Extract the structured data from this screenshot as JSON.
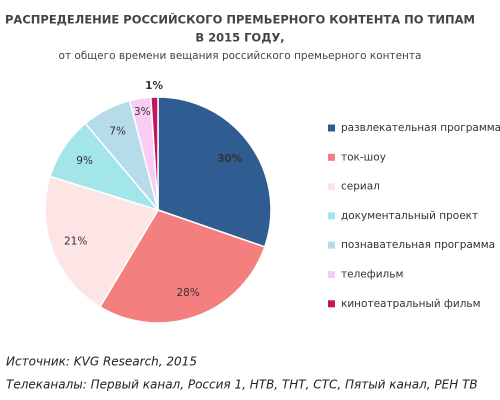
{
  "chart_data": {
    "type": "pie",
    "title": [
      "РАСПРЕДЕЛЕНИЕ РОССИЙСКОГО ПРЕМЬЕРНОГО КОНТЕНТА ПО ТИПАМ",
      "В 2015 ГОДУ,"
    ],
    "subtitle": "от общего времени вещания российского премьерного контента",
    "categories": [
      "развлекательная программа",
      "ток-шоу",
      "сериал",
      "документальный проект",
      "познавательная программа",
      "телефильм",
      "кинотеатральный фильм"
    ],
    "values": [
      30,
      28,
      21,
      9,
      7,
      3,
      1
    ],
    "value_labels": [
      "30%",
      "28%",
      "21%",
      "9%",
      "7%",
      "3%",
      "1%"
    ],
    "colors": [
      "#2f5d91",
      "#f47f7f",
      "#fde5e6",
      "#a2e6ea",
      "#b7dce9",
      "#f9cdf3",
      "#c2185b"
    ],
    "legend": "right",
    "notes": [
      "Источник: KVG Research, 2015",
      "Телеканалы: Первый канал, Россия 1, НТВ, ТНТ, СТС, Пятый канал, РЕН ТВ"
    ]
  }
}
